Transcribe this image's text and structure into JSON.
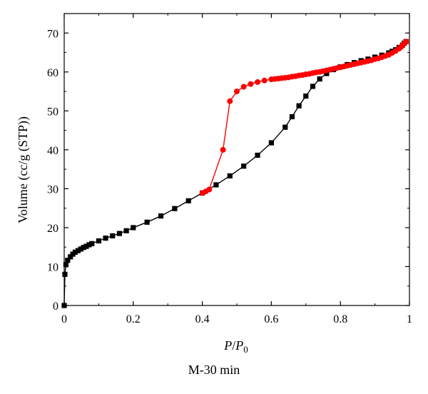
{
  "chart_data": {
    "type": "line",
    "xlabel_main": "P",
    "xlabel_slash": "/",
    "xlabel_p0": "P",
    "xlabel_sub": "0",
    "ylabel": "Volume (cc/g (STP))",
    "xlim": [
      0,
      1
    ],
    "ylim": [
      0,
      75
    ],
    "x_ticks": [
      0,
      0.2,
      0.4,
      0.6,
      0.8,
      1
    ],
    "x_tick_labels": [
      "0",
      "0.2",
      "0.4",
      "0.6",
      "0.8",
      "1"
    ],
    "y_ticks": [
      0,
      10,
      20,
      30,
      40,
      50,
      60,
      70
    ],
    "y_tick_labels": [
      "0",
      "10",
      "20",
      "30",
      "40",
      "50",
      "60",
      "70"
    ],
    "grid": false,
    "caption": "M-30 min",
    "series": [
      {
        "color": "#000000",
        "marker": "square",
        "points": [
          [
            0.0,
            0.0
          ],
          [
            0.002,
            8.0
          ],
          [
            0.005,
            10.5
          ],
          [
            0.01,
            11.6
          ],
          [
            0.018,
            12.5
          ],
          [
            0.025,
            13.2
          ],
          [
            0.032,
            13.7
          ],
          [
            0.04,
            14.1
          ],
          [
            0.048,
            14.5
          ],
          [
            0.056,
            14.9
          ],
          [
            0.064,
            15.2
          ],
          [
            0.072,
            15.6
          ],
          [
            0.08,
            15.9
          ],
          [
            0.1,
            16.6
          ],
          [
            0.12,
            17.3
          ],
          [
            0.14,
            17.9
          ],
          [
            0.16,
            18.5
          ],
          [
            0.18,
            19.2
          ],
          [
            0.2,
            20.0
          ],
          [
            0.24,
            21.4
          ],
          [
            0.28,
            23.0
          ],
          [
            0.32,
            24.9
          ],
          [
            0.36,
            26.9
          ],
          [
            0.4,
            28.9
          ],
          [
            0.44,
            31.0
          ],
          [
            0.48,
            33.3
          ],
          [
            0.52,
            35.8
          ],
          [
            0.56,
            38.6
          ],
          [
            0.6,
            41.8
          ],
          [
            0.64,
            45.8
          ],
          [
            0.66,
            48.5
          ],
          [
            0.68,
            51.3
          ],
          [
            0.7,
            53.8
          ],
          [
            0.72,
            56.3
          ],
          [
            0.74,
            58.2
          ],
          [
            0.76,
            59.6
          ],
          [
            0.78,
            60.6
          ],
          [
            0.8,
            61.3
          ],
          [
            0.82,
            61.9
          ],
          [
            0.84,
            62.4
          ],
          [
            0.86,
            62.9
          ],
          [
            0.88,
            63.3
          ],
          [
            0.9,
            63.8
          ],
          [
            0.92,
            64.3
          ],
          [
            0.94,
            64.9
          ],
          [
            0.95,
            65.3
          ],
          [
            0.96,
            65.7
          ],
          [
            0.97,
            66.3
          ],
          [
            0.98,
            66.9
          ],
          [
            0.985,
            67.4
          ],
          [
            0.99,
            67.8
          ]
        ]
      },
      {
        "color": "#ff0000",
        "marker": "circle",
        "points": [
          [
            0.99,
            67.8
          ],
          [
            0.985,
            67.3
          ],
          [
            0.98,
            66.8
          ],
          [
            0.975,
            66.4
          ],
          [
            0.97,
            66.0
          ],
          [
            0.96,
            65.4
          ],
          [
            0.95,
            64.9
          ],
          [
            0.94,
            64.4
          ],
          [
            0.93,
            64.1
          ],
          [
            0.92,
            63.8
          ],
          [
            0.91,
            63.5
          ],
          [
            0.9,
            63.3
          ],
          [
            0.89,
            63.0
          ],
          [
            0.88,
            62.8
          ],
          [
            0.87,
            62.6
          ],
          [
            0.86,
            62.4
          ],
          [
            0.85,
            62.2
          ],
          [
            0.84,
            62.0
          ],
          [
            0.83,
            61.8
          ],
          [
            0.82,
            61.6
          ],
          [
            0.81,
            61.4
          ],
          [
            0.8,
            61.2
          ],
          [
            0.79,
            61.0
          ],
          [
            0.78,
            60.8
          ],
          [
            0.77,
            60.6
          ],
          [
            0.76,
            60.4
          ],
          [
            0.75,
            60.2
          ],
          [
            0.74,
            60.0
          ],
          [
            0.73,
            59.9
          ],
          [
            0.72,
            59.7
          ],
          [
            0.71,
            59.5
          ],
          [
            0.7,
            59.4
          ],
          [
            0.69,
            59.2
          ],
          [
            0.68,
            59.1
          ],
          [
            0.67,
            58.9
          ],
          [
            0.66,
            58.8
          ],
          [
            0.65,
            58.6
          ],
          [
            0.64,
            58.5
          ],
          [
            0.63,
            58.4
          ],
          [
            0.62,
            58.3
          ],
          [
            0.61,
            58.2
          ],
          [
            0.6,
            58.1
          ],
          [
            0.58,
            57.8
          ],
          [
            0.56,
            57.4
          ],
          [
            0.54,
            56.9
          ],
          [
            0.52,
            56.2
          ],
          [
            0.5,
            55.0
          ],
          [
            0.48,
            52.5
          ],
          [
            0.46,
            40.0
          ],
          [
            0.42,
            29.8
          ],
          [
            0.41,
            29.3
          ],
          [
            0.4,
            28.9
          ]
        ]
      }
    ]
  }
}
